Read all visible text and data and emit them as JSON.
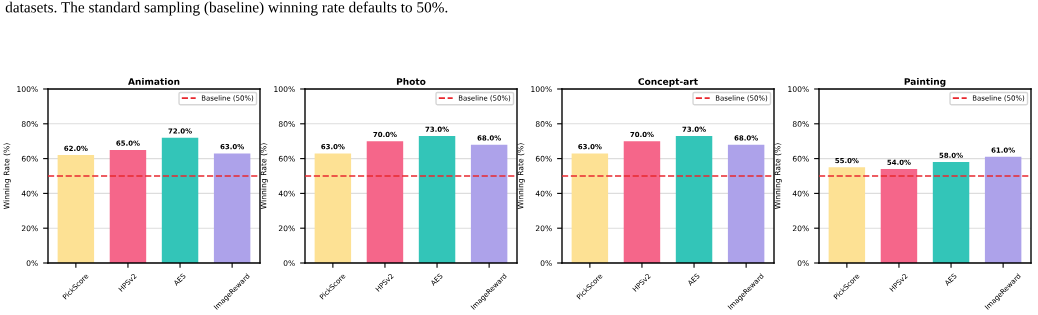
{
  "chart_data": [
    {
      "type": "bar",
      "title": "Animation",
      "ylabel": "Winning Rate (%)",
      "categories": [
        "PickScore",
        "HPSv2",
        "AES",
        "ImageReward"
      ],
      "values": [
        62,
        65,
        72,
        63
      ],
      "colors": [
        "#fde194",
        "#f5668a",
        "#33c5b8",
        "#ada2ea"
      ],
      "value_labels": [
        "62.0%",
        "65.0%",
        "72.0%",
        "63.0%"
      ],
      "ylim": [
        0,
        100
      ],
      "yticks": [
        {
          "value": 0,
          "label": "0%"
        },
        {
          "value": 20,
          "label": "20%"
        },
        {
          "value": 40,
          "label": "40%"
        },
        {
          "value": 60,
          "label": "60%"
        },
        {
          "value": 80,
          "label": "80%"
        },
        {
          "value": 100,
          "label": "100%"
        }
      ],
      "grid": "y",
      "legend": "top right",
      "ref_lines": [
        {
          "axis": "y",
          "value": 50,
          "label": "Baseline (50%)",
          "color": "#e8282f",
          "line_style": "dashed"
        }
      ],
      "annotations": [
        "datasets. The standard sampling (baseline) winning rate defaults to 50%."
      ]
    },
    {
      "type": "bar",
      "title": "Photo",
      "ylabel": "Winning Rate (%)",
      "categories": [
        "PickScore",
        "HPSv2",
        "AES",
        "ImageReward"
      ],
      "values": [
        63,
        70,
        73,
        68
      ],
      "colors": [
        "#fde194",
        "#f5668a",
        "#33c5b8",
        "#ada2ea"
      ],
      "value_labels": [
        "63.0%",
        "70.0%",
        "73.0%",
        "68.0%"
      ],
      "ylim": [
        0,
        100
      ],
      "yticks": [
        {
          "value": 0,
          "label": "0%"
        },
        {
          "value": 20,
          "label": "20%"
        },
        {
          "value": 40,
          "label": "40%"
        },
        {
          "value": 60,
          "label": "60%"
        },
        {
          "value": 80,
          "label": "80%"
        },
        {
          "value": 100,
          "label": "100%"
        }
      ],
      "grid": "y",
      "legend": "top right",
      "ref_lines": [
        {
          "axis": "y",
          "value": 50,
          "label": "Baseline (50%)",
          "color": "#e8282f",
          "line_style": "dashed"
        }
      ]
    },
    {
      "type": "bar",
      "title": "Concept-art",
      "ylabel": "Winning Rate (%)",
      "categories": [
        "PickScore",
        "HPSv2",
        "AES",
        "ImageReward"
      ],
      "values": [
        63,
        70,
        73,
        68
      ],
      "colors": [
        "#fde194",
        "#f5668a",
        "#33c5b8",
        "#ada2ea"
      ],
      "value_labels": [
        "63.0%",
        "70.0%",
        "73.0%",
        "68.0%"
      ],
      "ylim": [
        0,
        100
      ],
      "yticks": [
        {
          "value": 0,
          "label": "0%"
        },
        {
          "value": 20,
          "label": "20%"
        },
        {
          "value": 40,
          "label": "40%"
        },
        {
          "value": 60,
          "label": "60%"
        },
        {
          "value": 80,
          "label": "80%"
        },
        {
          "value": 100,
          "label": "100%"
        }
      ],
      "grid": "y",
      "legend": "top right",
      "ref_lines": [
        {
          "axis": "y",
          "value": 50,
          "label": "Baseline (50%)",
          "color": "#e8282f",
          "line_style": "dashed"
        }
      ]
    },
    {
      "type": "bar",
      "title": "Painting",
      "ylabel": "Winning Rate (%)",
      "categories": [
        "PickScore",
        "HPSv2",
        "AES",
        "ImageReward"
      ],
      "values": [
        55,
        54,
        58,
        61
      ],
      "colors": [
        "#fde194",
        "#f5668a",
        "#33c5b8",
        "#ada2ea"
      ],
      "value_labels": [
        "55.0%",
        "54.0%",
        "58.0%",
        "61.0%"
      ],
      "ylim": [
        0,
        100
      ],
      "yticks": [
        {
          "value": 0,
          "label": "0%"
        },
        {
          "value": 20,
          "label": "20%"
        },
        {
          "value": 40,
          "label": "40%"
        },
        {
          "value": 60,
          "label": "60%"
        },
        {
          "value": 80,
          "label": "80%"
        },
        {
          "value": 100,
          "label": "100%"
        }
      ],
      "grid": "y",
      "legend": "top right",
      "ref_lines": [
        {
          "axis": "y",
          "value": 50,
          "label": "Baseline (50%)",
          "color": "#e8282f",
          "line_style": "dashed"
        }
      ]
    }
  ]
}
